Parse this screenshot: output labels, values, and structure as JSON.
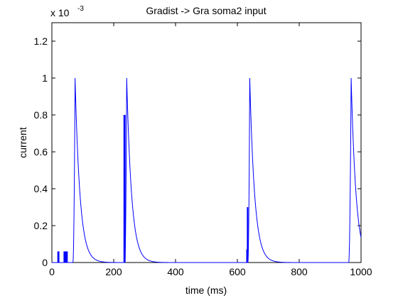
{
  "chart_data": {
    "type": "line",
    "title": "Gradist -> Gra soma2 input",
    "xlabel": "time (ms)",
    "ylabel": "current",
    "y_multiplier": "x 10",
    "y_multiplier_exponent": "-3",
    "xlim": [
      0,
      1000
    ],
    "ylim": [
      0,
      0.0013
    ],
    "x_ticks": [
      0,
      200,
      400,
      600,
      800,
      1000
    ],
    "x_tick_labels": [
      "0",
      "200",
      "400",
      "600",
      "800",
      "1000"
    ],
    "y_ticks": [
      0,
      0.0002,
      0.0004,
      0.0006,
      0.0008,
      0.001,
      0.0012
    ],
    "y_tick_labels": [
      "0",
      "0.2",
      "0.4",
      "0.6",
      "0.8",
      "1",
      "1.2"
    ],
    "grid": false,
    "series_color": "#0000ff",
    "pulses": [
      {
        "onset": 68,
        "peak_time": 75,
        "peak": 0.001,
        "decay_tau": 16
      },
      {
        "onset": 236,
        "peak_time": 242,
        "peak": 0.001,
        "decay_tau": 16
      },
      {
        "onset": 634,
        "peak_time": 640,
        "peak": 0.001,
        "decay_tau": 16
      },
      {
        "onset": 960,
        "peak_time": 968,
        "peak": 0.001,
        "decay_tau": 16
      }
    ],
    "spikes": [
      {
        "x": 20,
        "value": 6e-05
      },
      {
        "x": 22,
        "value": 6e-05
      },
      {
        "x": 40,
        "value": 6e-05
      },
      {
        "x": 43,
        "value": 6e-05
      },
      {
        "x": 46,
        "value": 6e-05
      },
      {
        "x": 49,
        "value": 6e-05
      },
      {
        "x": 234,
        "value": 0.0008
      },
      {
        "x": 236,
        "value": 0.0008
      },
      {
        "x": 631,
        "value": 7e-05
      },
      {
        "x": 633,
        "value": 0.0003
      }
    ]
  }
}
